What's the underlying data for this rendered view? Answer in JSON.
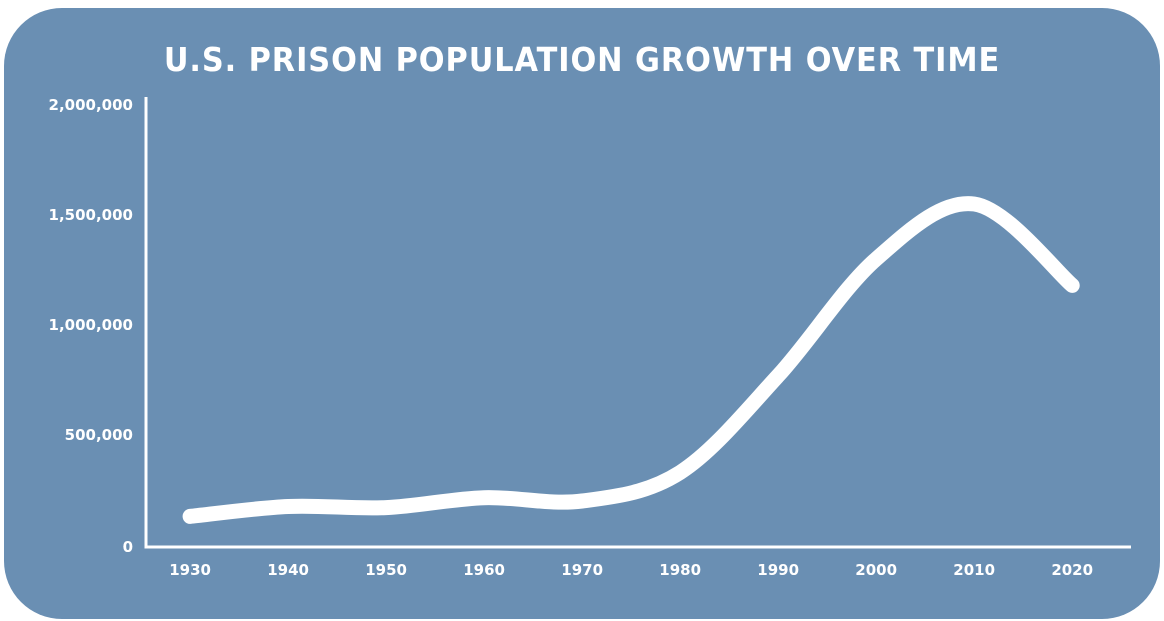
{
  "chart_data": {
    "type": "line",
    "title": "U.S. PRISON POPULATION GROWTH OVER TIME",
    "xlabel": "",
    "ylabel": "",
    "x": [
      1930,
      1940,
      1950,
      1960,
      1970,
      1980,
      1990,
      2000,
      2010,
      2020
    ],
    "y_tick_labels": [
      "0",
      "500,000",
      "1,000,000",
      "1,500,000",
      "2,000,000"
    ],
    "y_ticks": [
      0,
      500000,
      1000000,
      1500000,
      2000000
    ],
    "x_tick_labels": [
      "1930",
      "1940",
      "1950",
      "1960",
      "1970",
      "1980",
      "1990",
      "2000",
      "2010",
      "2020"
    ],
    "series": [
      {
        "values": [
          130000,
          175000,
          170000,
          215000,
          200000,
          330000,
          770000,
          1300000,
          1550000,
          1180000
        ]
      }
    ],
    "xlim": [
      1925.5,
      2026
    ],
    "ylim": [
      0,
      2000000
    ],
    "grid": false,
    "line_color": "#ffffff",
    "background_color": "#6a8fb3"
  }
}
